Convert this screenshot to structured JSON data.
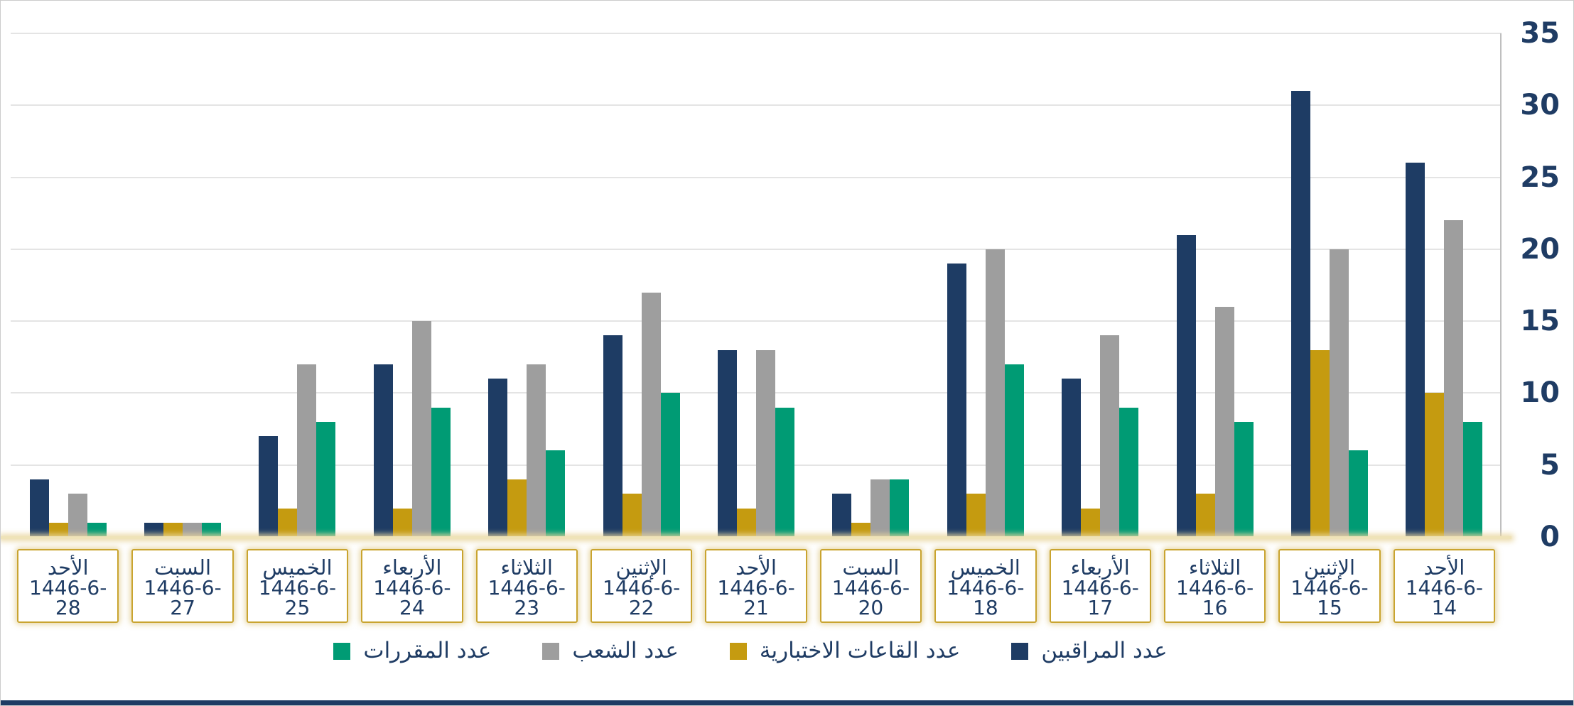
{
  "colors": {
    "navy": "#1e3c64",
    "gold": "#c59b10",
    "gray": "#9e9e9e",
    "green": "#009b74",
    "text": "#1f3c64",
    "gridline": "#e4e4e4",
    "axis_line": "#bfbfbf",
    "box_border": "#c9a430",
    "baseline": "#efe3b8",
    "frame_border": "#cccccc",
    "bottom_accent": "#1e3c64"
  },
  "chart_data": {
    "type": "bar",
    "direction": "rtl",
    "title": "",
    "grid": true,
    "y_axis_side": "right",
    "legend_position": "bottom",
    "ylim": [
      0,
      35
    ],
    "yticks": [
      0,
      5,
      10,
      15,
      20,
      25,
      30,
      35
    ],
    "categories": [
      {
        "day": "الأحد",
        "date": "1446-6-28"
      },
      {
        "day": "السبت",
        "date": "1446-6-27"
      },
      {
        "day": "الخميس",
        "date": "1446-6-25"
      },
      {
        "day": "الأربعاء",
        "date": "1446-6-24"
      },
      {
        "day": "الثلاثاء",
        "date": "1446-6-23"
      },
      {
        "day": "الإثنين",
        "date": "1446-6-22"
      },
      {
        "day": "الأحد",
        "date": "1446-6-21"
      },
      {
        "day": "السبت",
        "date": "1446-6-20"
      },
      {
        "day": "الخميس",
        "date": "1446-6-18"
      },
      {
        "day": "الأربعاء",
        "date": "1446-6-17"
      },
      {
        "day": "الثلاثاء",
        "date": "1446-6-16"
      },
      {
        "day": "الإثنين",
        "date": "1446-6-15"
      },
      {
        "day": "الأحد",
        "date": "1446-6-14"
      }
    ],
    "bar_order": [
      "navy",
      "gold",
      "gray",
      "green"
    ],
    "series": [
      {
        "name": "عدد المراقبين",
        "color_key": "navy",
        "values": [
          4,
          1,
          7,
          12,
          11,
          14,
          13,
          3,
          19,
          11,
          21,
          31,
          26
        ]
      },
      {
        "name": "عدد القاعات الاختبارية",
        "color_key": "gold",
        "values": [
          1,
          1,
          2,
          2,
          4,
          3,
          2,
          1,
          3,
          2,
          3,
          13,
          10
        ]
      },
      {
        "name": "عدد الشعب",
        "color_key": "gray",
        "values": [
          3,
          1,
          12,
          15,
          12,
          17,
          13,
          4,
          20,
          14,
          16,
          20,
          22
        ]
      },
      {
        "name": "عدد المقررات",
        "color_key": "green",
        "values": [
          1,
          1,
          8,
          9,
          6,
          10,
          9,
          4,
          12,
          9,
          8,
          6,
          8
        ]
      }
    ],
    "legend": [
      {
        "label": "عدد المقررات",
        "color_key": "green"
      },
      {
        "label": "عدد الشعب",
        "color_key": "gray"
      },
      {
        "label": "عدد القاعات الاختبارية",
        "color_key": "gold"
      },
      {
        "label": "عدد المراقبين",
        "color_key": "navy"
      }
    ]
  }
}
